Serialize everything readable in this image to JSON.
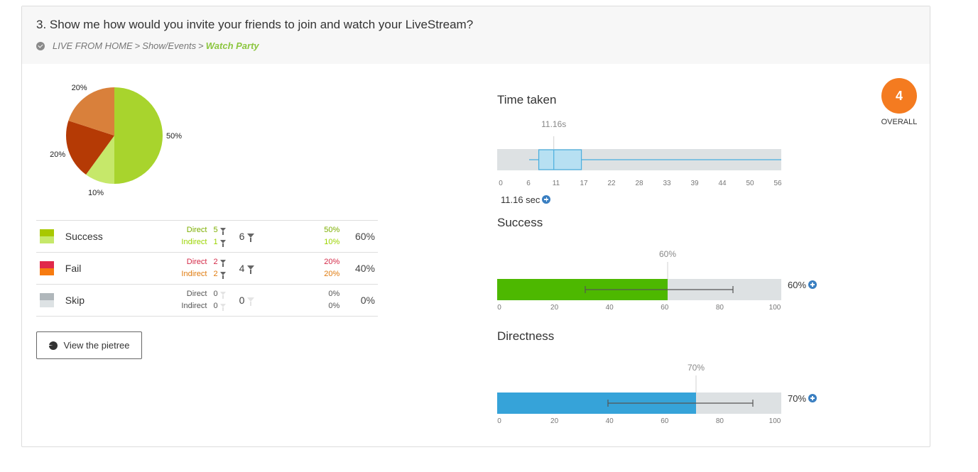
{
  "question": "3. Show me how would you invite your friends to join and watch your LiveStream?",
  "breadcrumb": {
    "items": [
      "LIVE FROM HOME",
      "Show/Events"
    ],
    "separator": ">",
    "current": "Watch Party"
  },
  "chart_data": [
    {
      "type": "pie",
      "categories": [
        "Success Direct",
        "Success Indirect",
        "Fail Direct",
        "Fail Indirect"
      ],
      "values": [
        50,
        10,
        20,
        20
      ],
      "labels": [
        "50%",
        "10%",
        "20%",
        "20%"
      ],
      "colors": [
        "#a8d42d",
        "#c6e86a",
        "#b53a05",
        "#d9803b"
      ]
    },
    {
      "type": "box",
      "title": "Time taken",
      "median_label": "11.16s",
      "median": 11.16,
      "q1": 8.2,
      "q3": 16.6,
      "whisker_low": 6.3,
      "whisker_high": 56,
      "xlim": [
        0,
        56
      ],
      "ticks": [
        "0",
        "6",
        "11",
        "17",
        "22",
        "28",
        "33",
        "39",
        "44",
        "50",
        "56"
      ],
      "value_text": "11.16 sec"
    },
    {
      "type": "bar",
      "title": "Success",
      "value": 60,
      "marker_label": "60%",
      "value_label": "60%",
      "error_low": 31,
      "error_high": 83,
      "xlim": [
        0,
        100
      ],
      "ticks": [
        "0",
        "20",
        "40",
        "60",
        "80",
        "100"
      ],
      "color": "#4db800"
    },
    {
      "type": "bar",
      "title": "Directness",
      "value": 70,
      "marker_label": "70%",
      "value_label": "70%",
      "error_low": 39,
      "error_high": 90,
      "xlim": [
        0,
        100
      ],
      "ticks": [
        "0",
        "20",
        "40",
        "60",
        "80",
        "100"
      ],
      "color": "#36a3d9"
    }
  ],
  "stats": [
    {
      "label": "Success",
      "colors": [
        "#a8c800",
        "#c6e86a"
      ],
      "sub": [
        "Direct",
        "Indirect"
      ],
      "sub_colors": [
        "#7cae00",
        "#9bd400"
      ],
      "counts": [
        "5",
        "1"
      ],
      "count_colors": [
        "#7cae00",
        "#9bd400"
      ],
      "total": "6",
      "pcts": [
        "50%",
        "10%"
      ],
      "pct_total": "60%"
    },
    {
      "label": "Fail",
      "colors": [
        "#e0284a",
        "#f77b10"
      ],
      "sub": [
        "Direct",
        "Indirect"
      ],
      "sub_colors": [
        "#d42a48",
        "#e07b0e"
      ],
      "counts": [
        "2",
        "2"
      ],
      "count_colors": [
        "#d42a48",
        "#e07b0e"
      ],
      "total": "4",
      "pcts": [
        "20%",
        "20%"
      ],
      "pct_total": "40%"
    },
    {
      "label": "Skip",
      "colors": [
        "#b0b7bb",
        "#dde2e4"
      ],
      "sub": [
        "Direct",
        "Indirect"
      ],
      "sub_colors": [
        "#555555",
        "#555555"
      ],
      "counts": [
        "0",
        "0"
      ],
      "count_colors": [
        "#555555",
        "#555555"
      ],
      "total": "0",
      "pcts": [
        "0%",
        "0%"
      ],
      "pct_total": "0%"
    }
  ],
  "pietree_button": "View the pietree",
  "overall": {
    "score": "4",
    "label": "OVERALL",
    "color": "#f47b20"
  }
}
